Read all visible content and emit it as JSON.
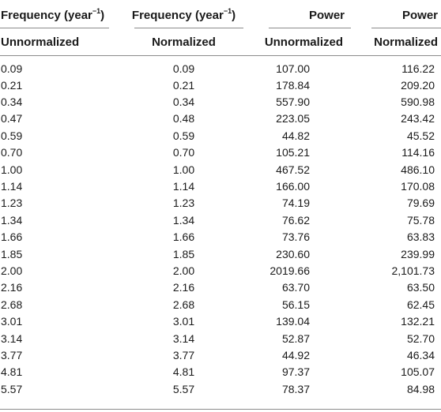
{
  "table": {
    "header_row1": {
      "col1_prefix": "Frequency (year",
      "col1_sup": "−1",
      "col1_suffix": ")",
      "col2_prefix": "Frequency (year",
      "col2_sup": "−1",
      "col2_suffix": ")",
      "col3": "Power",
      "col4": "Power"
    },
    "header_row2": {
      "col1": "Unnormalized",
      "col2": "Normalized",
      "col3": "Unnormalized",
      "col4": "Normalized"
    },
    "rows": [
      [
        "0.09",
        "0.09",
        "107.00",
        "116.22"
      ],
      [
        "0.21",
        "0.21",
        "178.84",
        "209.20"
      ],
      [
        "0.34",
        "0.34",
        "557.90",
        "590.98"
      ],
      [
        "0.47",
        "0.48",
        "223.05",
        "243.42"
      ],
      [
        "0.59",
        "0.59",
        "44.82",
        "45.52"
      ],
      [
        "0.70",
        "0.70",
        "105.21",
        "114.16"
      ],
      [
        "1.00",
        "1.00",
        "467.52",
        "486.10"
      ],
      [
        "1.14",
        "1.14",
        "166.00",
        "170.08"
      ],
      [
        "1.23",
        "1.23",
        "74.19",
        "79.69"
      ],
      [
        "1.34",
        "1.34",
        "76.62",
        "75.78"
      ],
      [
        "1.66",
        "1.66",
        "73.76",
        "63.83"
      ],
      [
        "1.85",
        "1.85",
        "230.60",
        "239.99"
      ],
      [
        "2.00",
        "2.00",
        "2019.66",
        "2,101.73"
      ],
      [
        "2.16",
        "2.16",
        "63.70",
        "63.50"
      ],
      [
        "2.68",
        "2.68",
        "56.15",
        "62.45"
      ],
      [
        "3.01",
        "3.01",
        "139.04",
        "132.21"
      ],
      [
        "3.14",
        "3.14",
        "52.87",
        "52.70"
      ],
      [
        "3.77",
        "3.77",
        "44.92",
        "46.34"
      ],
      [
        "4.81",
        "4.81",
        "97.37",
        "105.07"
      ],
      [
        "5.57",
        "5.57",
        "78.37",
        "84.98"
      ]
    ]
  }
}
